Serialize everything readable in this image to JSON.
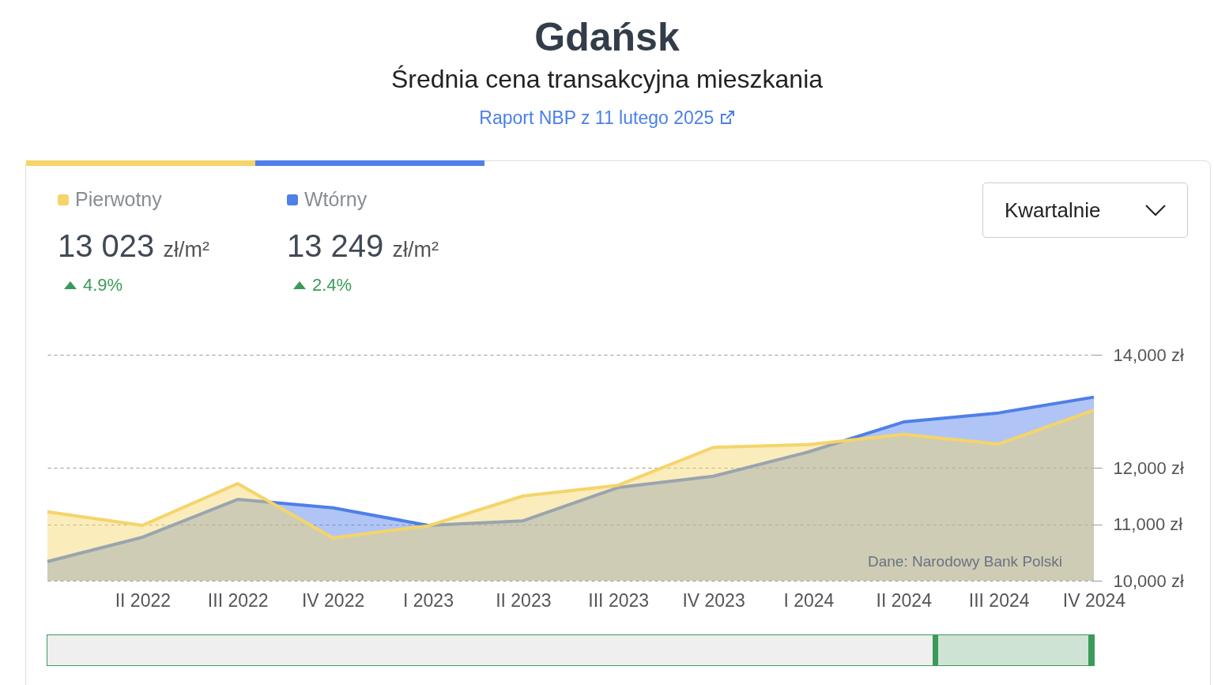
{
  "chart_data": {
    "type": "area",
    "title": "Gdańsk",
    "subtitle": "Średnia cena transakcyjna mieszkania",
    "annotations": [
      "Raport NBP z 11 lutego 2025",
      "13 023 zł/m²",
      "4.9%",
      "13 249 zł/m²",
      "2.4%",
      "Kwartalnie",
      "Dane: Narodowy Bank Polski"
    ],
    "categories": [
      null,
      "II 2022",
      "III 2022",
      "IV 2022",
      "I 2023",
      "II 2023",
      "III 2023",
      "IV 2023",
      "I 2024",
      "II 2024",
      "III 2024",
      "IV 2024"
    ],
    "series": [
      {
        "name": "Pierwotny",
        "color": "#f5d469",
        "values": [
          11220,
          10980,
          11720,
          10760,
          10970,
          11500,
          11690,
          12360,
          12410,
          12590,
          12420,
          13020
        ]
      },
      {
        "name": "Wtórny",
        "color": "#4f7fe8",
        "values": [
          10340,
          10770,
          11440,
          11290,
          10980,
          11060,
          11650,
          11850,
          12280,
          12810,
          12970,
          13250
        ]
      }
    ],
    "ylim": [
      10000,
      14000
    ],
    "yticks": [
      {
        "value": 10000,
        "label": "10,000 zł"
      },
      {
        "value": 11000,
        "label": "11,000 zł"
      },
      {
        "value": 12000,
        "label": "12,000 zł"
      },
      {
        "value": 14000,
        "label": "14,000 zł"
      }
    ],
    "grid": "y",
    "legend": "top left"
  }
}
